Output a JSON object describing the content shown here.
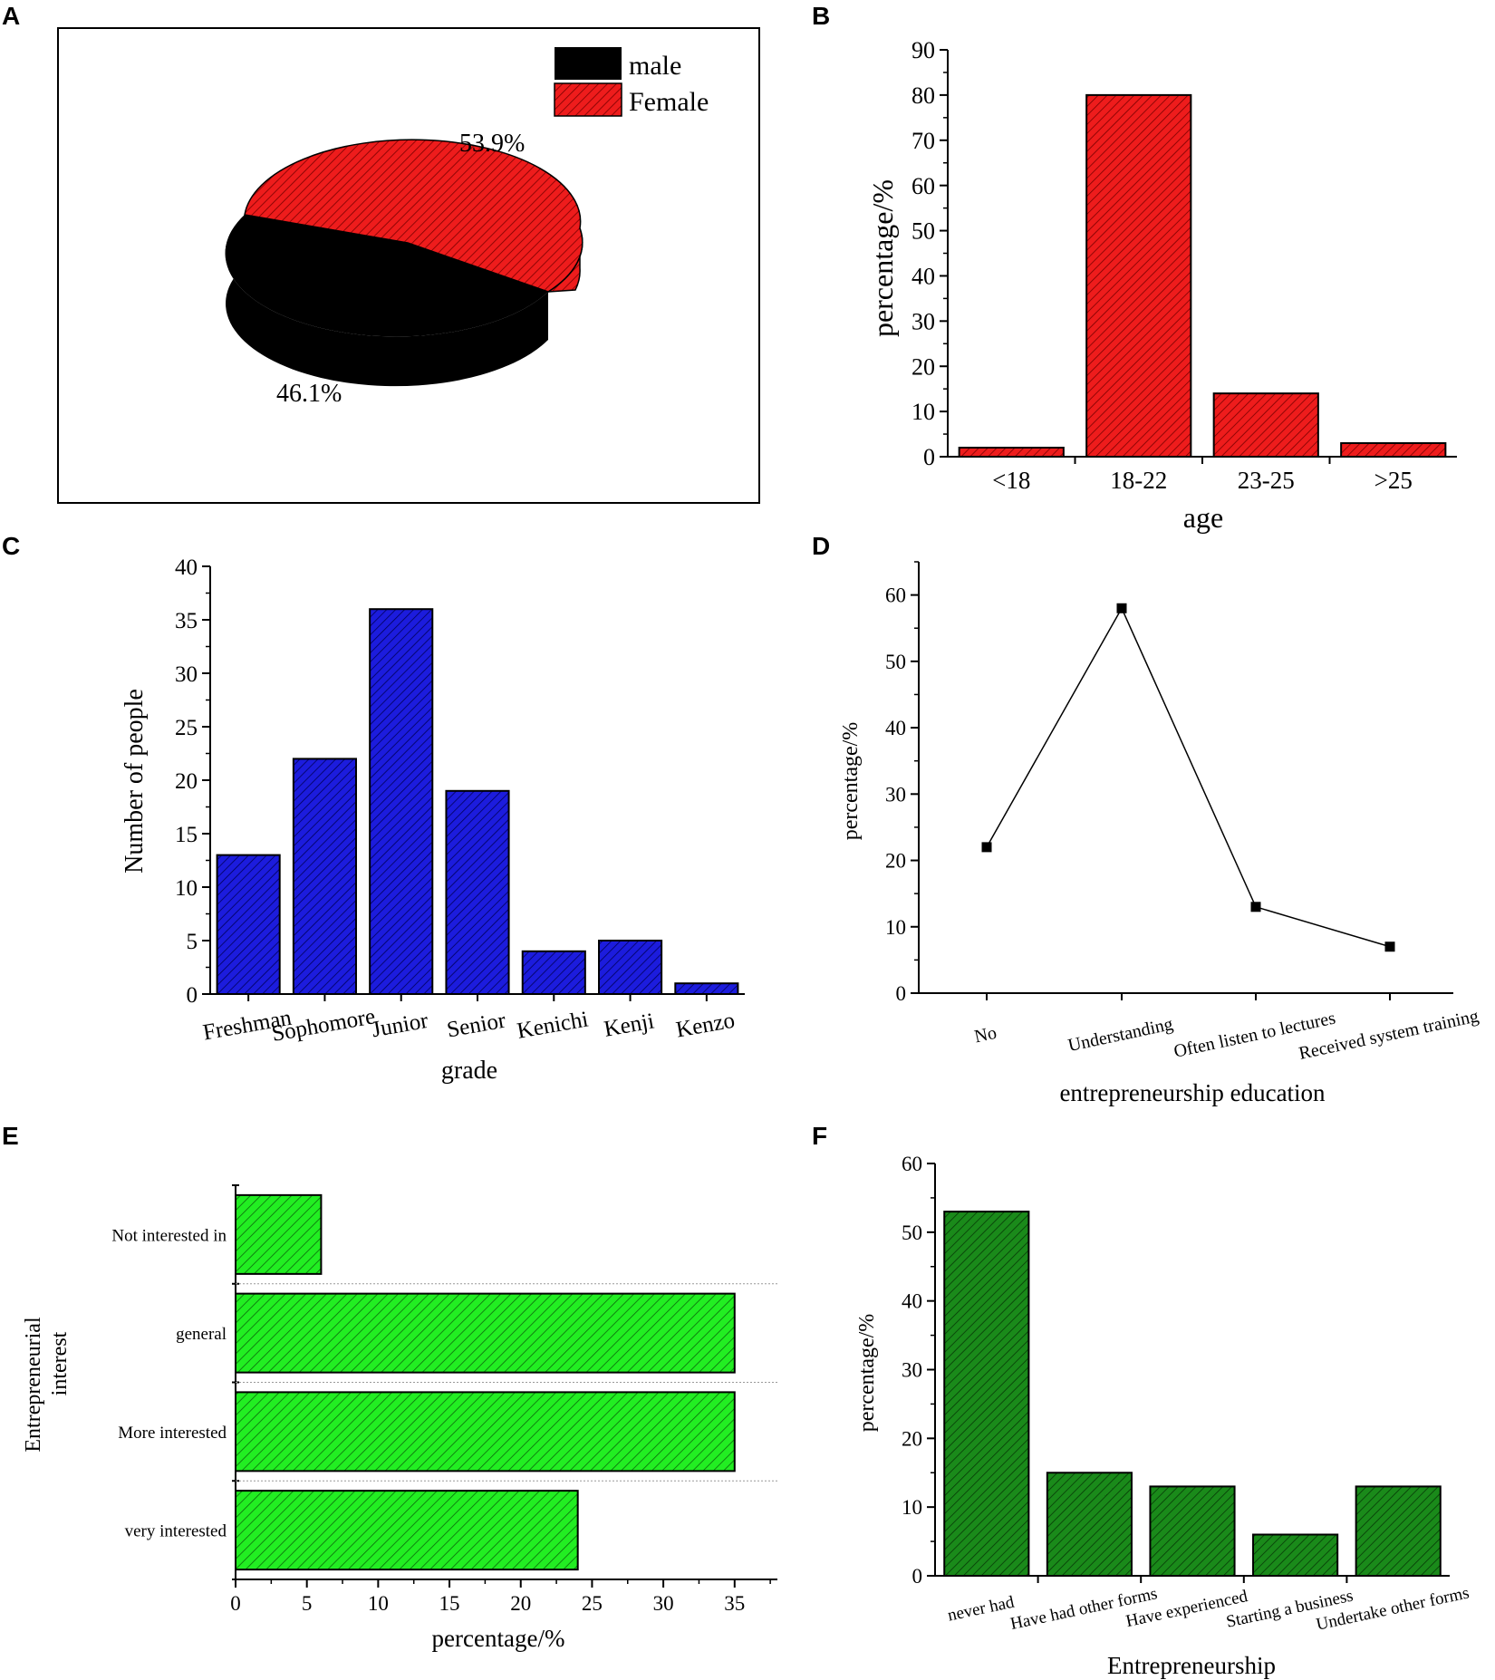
{
  "panels": {
    "A": {
      "letter": "A",
      "chart_data": {
        "type": "pie",
        "style": "3d",
        "labels": [
          "male",
          "Female"
        ],
        "values": [
          46.1,
          53.9
        ],
        "value_labels": [
          "46.1%",
          "53.9%"
        ],
        "colors": [
          "#000000",
          "#ee1c1c"
        ],
        "legend": [
          "male",
          "Female"
        ],
        "legend_position": "top-right"
      }
    },
    "B": {
      "letter": "B",
      "chart_data": {
        "type": "bar",
        "categories": [
          "<18",
          "18-22",
          "23-25",
          ">25"
        ],
        "values": [
          2,
          80,
          14,
          3
        ],
        "xlabel": "age",
        "ylabel": "percentage/%",
        "ylim": [
          0,
          90
        ],
        "yticks": [
          "0",
          "10",
          "20",
          "30",
          "40",
          "50",
          "60",
          "70",
          "80",
          "90"
        ],
        "color": "#ee1c1c",
        "pattern": "hatched"
      }
    },
    "C": {
      "letter": "C",
      "chart_data": {
        "type": "bar",
        "categories": [
          "Freshman",
          "Sophomore",
          "Junior",
          "Senior",
          "Kenichi",
          "Kenji",
          "Kenzo"
        ],
        "values": [
          13,
          22,
          36,
          19,
          4,
          5,
          1
        ],
        "xlabel": "grade",
        "ylabel": "Number of people",
        "ylim": [
          0,
          40
        ],
        "yticks": [
          "0",
          "5",
          "10",
          "15",
          "20",
          "25",
          "30",
          "35",
          "40"
        ],
        "color": "#1c1cdd",
        "pattern": "hatched"
      }
    },
    "D": {
      "letter": "D",
      "chart_data": {
        "type": "line",
        "categories": [
          "No",
          "Understanding",
          "Often listen to  lectures",
          "Received system training"
        ],
        "values": [
          22,
          58,
          13,
          7
        ],
        "xlabel": "entrepreneurship education",
        "ylabel": "percentage/%",
        "ylim": [
          0,
          65
        ],
        "yticks": [
          "0",
          "10",
          "20",
          "30",
          "40",
          "50",
          "60"
        ],
        "color": "#000000",
        "marker": "square"
      }
    },
    "E": {
      "letter": "E",
      "chart_data": {
        "type": "bar",
        "orientation": "horizontal",
        "categories": [
          "Not interested in",
          "general",
          "More interested",
          "very interested"
        ],
        "values": [
          6,
          35,
          35,
          24
        ],
        "xlabel": "percentage/%",
        "ylabel": "Entrepreneurial\ninterest",
        "ylabel_lines": [
          "Entrepreneurial",
          "interest"
        ],
        "xlim": [
          0,
          38
        ],
        "xticks": [
          "0",
          "5",
          "10",
          "15",
          "20",
          "25",
          "30",
          "35"
        ],
        "color": "#22ee22",
        "pattern": "hatched"
      }
    },
    "F": {
      "letter": "F",
      "chart_data": {
        "type": "bar",
        "categories": [
          "never had",
          "Have had other forms",
          "Have experienced",
          "Starting a business",
          "Undertake other forms"
        ],
        "values": [
          53,
          15,
          13,
          6,
          13
        ],
        "xlabel": "Entrepreneurship",
        "ylabel": "percentage/%",
        "ylim": [
          0,
          60
        ],
        "yticks": [
          "0",
          "10",
          "20",
          "30",
          "40",
          "50",
          "60"
        ],
        "color": "#1a8a1a",
        "pattern": "hatched"
      }
    }
  }
}
